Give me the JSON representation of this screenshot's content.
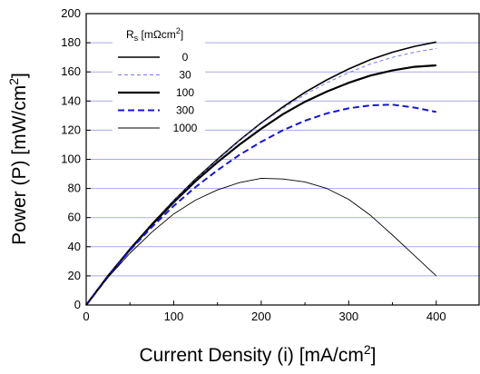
{
  "chart_data": {
    "type": "line",
    "xlabel_main": "Current Density (i) [mA/cm",
    "xlabel_sup": "2",
    "xlabel_end": "]",
    "ylabel_main": "Power (P) [mW/cm",
    "ylabel_sup": "2",
    "ylabel_end": "]",
    "xlim": [
      0,
      450
    ],
    "ylim": [
      0,
      200
    ],
    "x_ticks": [
      0,
      100,
      200,
      300,
      400
    ],
    "y_ticks": [
      0,
      20,
      40,
      60,
      80,
      100,
      120,
      140,
      160,
      180,
      200
    ],
    "grid": "horizontal",
    "legend_position": "top-left",
    "legend_title": {
      "symbol": "R",
      "subscript": "s",
      "units_main": " [mΩcm",
      "units_sup": "2",
      "units_end": "]"
    },
    "series": [
      {
        "name": "0",
        "color": "#000000",
        "style": "solid",
        "x": [
          0,
          25,
          50,
          75,
          100,
          125,
          150,
          175,
          200,
          225,
          250,
          275,
          300,
          325,
          350,
          375,
          400
        ],
        "y": [
          0,
          20,
          38.5,
          55.5,
          71.5,
          86.5,
          100,
          113,
          125,
          136,
          146,
          154.5,
          162,
          168.5,
          173.5,
          177.5,
          180.5
        ]
      },
      {
        "name": "30",
        "color": "#7777ee",
        "style": "dashed",
        "x": [
          0,
          25,
          50,
          75,
          100,
          125,
          150,
          175,
          200,
          225,
          250,
          275,
          300,
          325,
          350,
          375,
          400
        ],
        "y": [
          0,
          20,
          38.5,
          55.5,
          71.5,
          86,
          99.5,
          112.5,
          124.5,
          135,
          144.5,
          152.5,
          159.5,
          165.5,
          170,
          173.5,
          176
        ]
      },
      {
        "name": "100",
        "color": "#000000",
        "style": "thick",
        "x": [
          0,
          25,
          50,
          75,
          100,
          125,
          150,
          175,
          200,
          225,
          250,
          275,
          300,
          325,
          350,
          375,
          400
        ],
        "y": [
          0,
          20,
          38,
          55,
          70.5,
          85,
          98,
          110,
          121,
          131,
          139.5,
          146.5,
          152.5,
          157.5,
          161,
          163.5,
          164.5
        ]
      },
      {
        "name": "300",
        "color": "#1515d8",
        "style": "thick-dashed",
        "x": [
          0,
          25,
          50,
          75,
          100,
          125,
          150,
          175,
          200,
          225,
          250,
          275,
          300,
          325,
          350,
          375,
          400
        ],
        "y": [
          0,
          19.5,
          37.5,
          53.5,
          68,
          81,
          92.5,
          103,
          112,
          120,
          126.5,
          131.5,
          135,
          137,
          137.5,
          135.5,
          132.5
        ]
      },
      {
        "name": "1000",
        "color": "#000000",
        "style": "thin",
        "x": [
          0,
          25,
          50,
          75,
          100,
          125,
          150,
          175,
          200,
          225,
          250,
          275,
          300,
          325,
          350,
          375,
          400
        ],
        "y": [
          0,
          19,
          35.5,
          50,
          62.5,
          72,
          79,
          84,
          87,
          86.5,
          84.5,
          80,
          72.5,
          61.5,
          48,
          34,
          20
        ]
      }
    ]
  }
}
